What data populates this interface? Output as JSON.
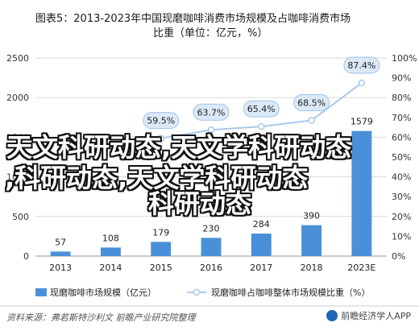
{
  "title_line1": "图表5：2013-2023年中国现磨咖啡消费市场规模及占咖啡消费市场",
  "title_line2": "比重（单位：亿元，%）",
  "chart_data": {
    "type": "bar",
    "categories": [
      "2013",
      "2014",
      "2015",
      "2016",
      "2017",
      "2018",
      "2023E"
    ],
    "series": [
      {
        "name": "现磨咖啡市场规模（亿元）",
        "type": "bar",
        "axis": "left",
        "values": [
          57,
          108,
          179,
          230,
          284,
          390,
          1579
        ],
        "color": "#4a90d9"
      },
      {
        "name": "现磨咖啡占咖啡整体市场规模比重（%）",
        "type": "line",
        "axis": "right",
        "values": [
          null,
          null,
          59.5,
          63.7,
          65.4,
          68.5,
          87.4
        ],
        "color": "#a9c9ea"
      }
    ],
    "left_ylim": [
      0,
      2500
    ],
    "left_ticks": [
      "0",
      "500",
      "1000",
      "1500",
      "2000",
      "2500"
    ],
    "right_ylim": [
      0,
      100
    ],
    "right_ticks": [
      "0%",
      "10%",
      "20%",
      "30%",
      "40%",
      "50%",
      "60%",
      "70%",
      "80%",
      "90%",
      "100%"
    ],
    "legend_position": "bottom"
  },
  "overlay_text": [
    "天文科研动态,天文学科研动态",
    ",科研动态,天文学科研动态",
    "科研动态"
  ],
  "source": "资料来源：弗若斯特沙利文 前瞻产业研究院整理",
  "brand": "前瞻经济学人APP"
}
